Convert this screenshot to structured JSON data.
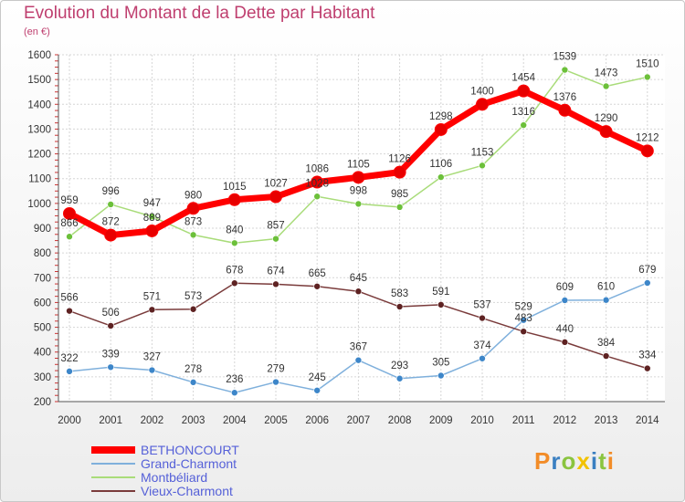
{
  "title": "Evolution du Montant de la Dette par Habitant",
  "subtitle": "(en €)",
  "logo_text": "Proxiti",
  "logo_colors": [
    "#f28c28",
    "#3a7fc1",
    "#8ac43f",
    "#f2c200",
    "#3a7fc1",
    "#8ac43f",
    "#f28c28"
  ],
  "chart_data": {
    "type": "line",
    "x": [
      "2000",
      "2001",
      "2002",
      "2003",
      "2004",
      "2005",
      "2006",
      "2007",
      "2008",
      "2009",
      "2010",
      "2011",
      "2012",
      "2013",
      "2014"
    ],
    "yticks": [
      "200",
      "300",
      "400",
      "500",
      "600",
      "700",
      "800",
      "900",
      "1000",
      "1100",
      "1200",
      "1300",
      "1400",
      "1500",
      "1600"
    ],
    "ylim": [
      200,
      1600
    ],
    "grid": true,
    "legend_position": "bottom-left",
    "series": [
      {
        "name": "BETHONCOURT",
        "color": "#ff0000",
        "marker": "#e80000",
        "width": 7,
        "label_color": "#333333",
        "values": [
          959,
          872,
          889,
          980,
          1015,
          1027,
          1086,
          1105,
          1126,
          1298,
          1400,
          1454,
          1376,
          1290,
          1212
        ]
      },
      {
        "name": "Grand-Charmont",
        "color": "#7fb0dc",
        "marker": "#3d86c9",
        "width": 1.5,
        "label_color": "#333333",
        "values": [
          322,
          339,
          327,
          278,
          236,
          279,
          245,
          367,
          293,
          305,
          374,
          529,
          609,
          610,
          679
        ]
      },
      {
        "name": "Montbéliard",
        "color": "#a9dc7a",
        "marker": "#6cc03a",
        "width": 1.5,
        "label_color": "#333333",
        "values": [
          866,
          996,
          947,
          873,
          840,
          857,
          1028,
          998,
          985,
          1106,
          1153,
          1316,
          1539,
          1473,
          1510
        ]
      },
      {
        "name": "Vieux-Charmont",
        "color": "#7a3b3b",
        "marker": "#5e2222",
        "width": 1.5,
        "label_color": "#333333",
        "values": [
          566,
          506,
          571,
          573,
          678,
          674,
          665,
          645,
          583,
          591,
          537,
          483,
          440,
          384,
          334
        ]
      }
    ]
  }
}
